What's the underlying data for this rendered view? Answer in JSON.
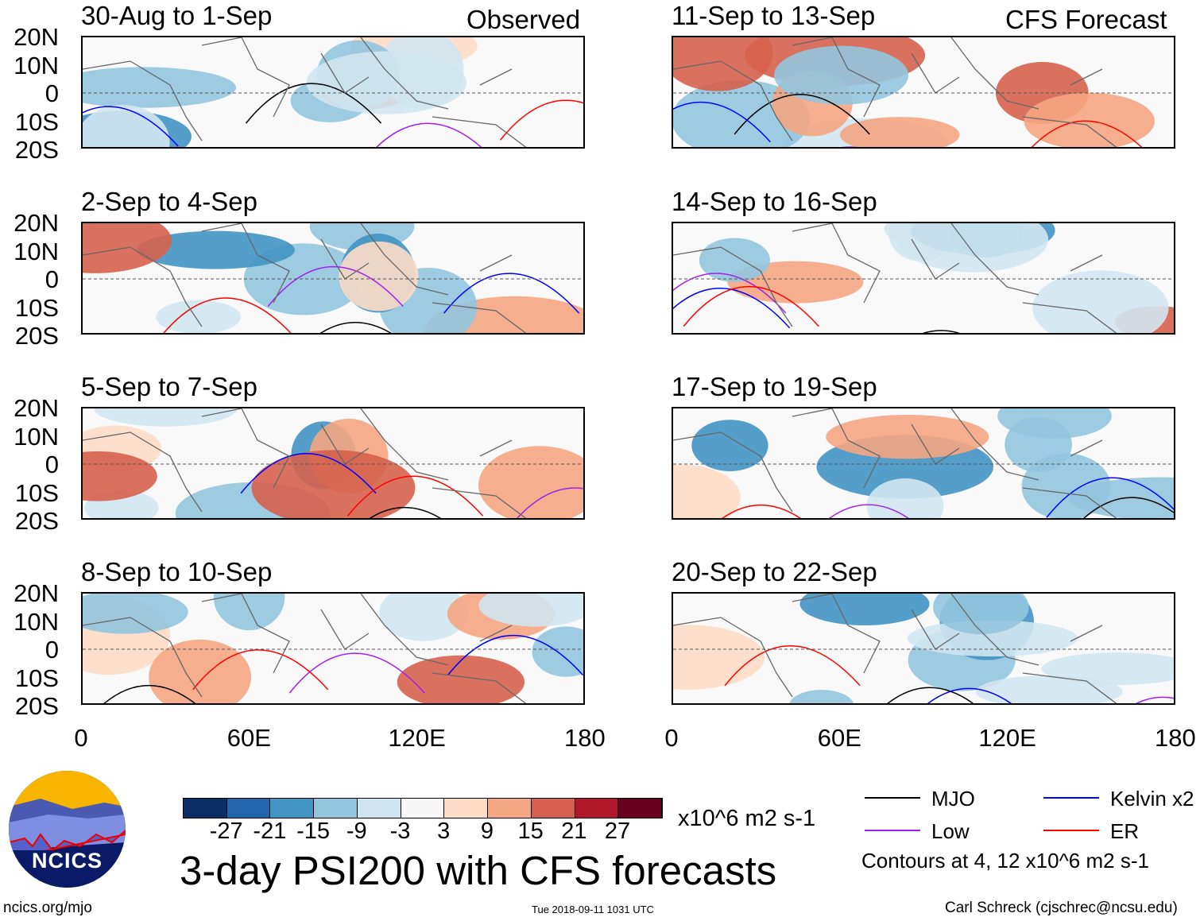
{
  "observed_label": "Observed",
  "forecast_label": "CFS Forecast",
  "panels_left": [
    "30-Aug to 1-Sep",
    "2-Sep to 4-Sep",
    "5-Sep to 7-Sep",
    "8-Sep to 10-Sep"
  ],
  "panels_right": [
    "11-Sep to 13-Sep",
    "14-Sep to 16-Sep",
    "17-Sep to 19-Sep",
    "20-Sep to 22-Sep"
  ],
  "lat_labels": [
    "20N",
    "10N",
    "0",
    "10S",
    "20S"
  ],
  "lon_labels": [
    "0",
    "60E",
    "120E",
    "180"
  ],
  "colorbar": {
    "labels": [
      "-27",
      "-21",
      "-15",
      "-9",
      "-3",
      "3",
      "9",
      "15",
      "21",
      "27"
    ],
    "colors": [
      "#0a2f66",
      "#2166ac",
      "#4393c3",
      "#92c5de",
      "#d1e5f0",
      "#f7f7f7",
      "#fddbc7",
      "#f4a582",
      "#d6604d",
      "#b2182b",
      "#67001f"
    ],
    "units": "x10^6 m2 s-1"
  },
  "title": "3-day PSI200 with CFS forecasts",
  "legend": {
    "items": [
      {
        "label": "MJO",
        "color": "#000000"
      },
      {
        "label": "Kelvin x2",
        "color": "#0000ff"
      },
      {
        "label": "Low",
        "color": "#a020f0"
      },
      {
        "label": "ER",
        "color": "#ff0000"
      }
    ],
    "note": "Contours at 4, 12 x10^6 m2 s-1"
  },
  "logo_text": "NCICS",
  "url": "ncics.org/mjo",
  "timestamp": "Tue 2018-09-11 1031 UTC",
  "credit": "Carl Schreck (cjschrec@ncsu.edu)"
}
